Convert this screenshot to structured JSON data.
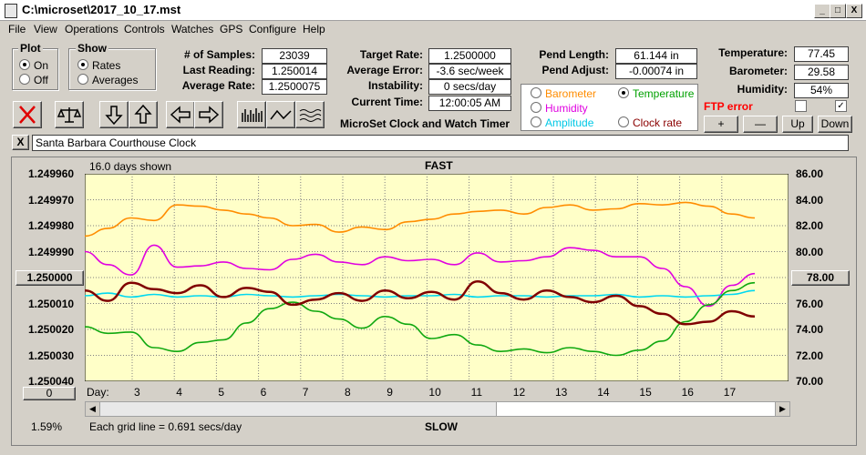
{
  "window": {
    "title": "C:\\microset\\2017_10_17.mst",
    "minimize": "_",
    "maximize": "□",
    "close": "X"
  },
  "menu": [
    "File",
    "View",
    "Operations",
    "Controls",
    "Watches",
    "GPS",
    "Configure",
    "Help"
  ],
  "plot_group": {
    "title": "Plot",
    "options": [
      "On",
      "Off"
    ],
    "selected": "On"
  },
  "show_group": {
    "title": "Show",
    "options": [
      "Rates",
      "Averages"
    ],
    "selected": "Rates"
  },
  "stats": {
    "samples_label": "# of Samples:",
    "samples": "23039",
    "last_reading_label": "Last Reading:",
    "last_reading": "1.250014",
    "average_rate_label": "Average Rate:",
    "average_rate": "1.2500075",
    "target_rate_label": "Target Rate:",
    "target_rate": "1.2500000",
    "average_error_label": "Average Error:",
    "average_error": "-3.6 sec/week",
    "instability_label": "Instability:",
    "instability": "0 secs/day",
    "current_time_label": "Current Time:",
    "current_time": "12:00:05 AM",
    "pend_length_label": "Pend Length:",
    "pend_length": "61.144 in",
    "pend_adjust_label": "Pend Adjust:",
    "pend_adjust": "-0.00074 in",
    "temperature_label": "Temperature:",
    "temperature": "77.45",
    "barometer_label": "Barometer:",
    "barometer": "29.58",
    "humidity_label": "Humidity:",
    "humidity": "54%"
  },
  "app_caption": "MicroSet Clock and Watch Timer",
  "sensor_select": {
    "options": [
      {
        "label": "Barometer",
        "color": "#ff8c00"
      },
      {
        "label": "Temperature",
        "color": "#00a000"
      },
      {
        "label": "Humidity",
        "color": "#e000e0"
      },
      {
        "label": "Amplitude",
        "color": "#00c8e6"
      },
      {
        "label": "Clock rate",
        "color": "#8b0000"
      }
    ],
    "selected": "Temperature"
  },
  "ftp": {
    "label": "FTP error",
    "color": "#ff0000"
  },
  "scale_buttons": {
    "plus": "+",
    "minus": "—",
    "up": "Up",
    "down": "Down"
  },
  "clock_name": "Santa Barbara Courthouse Clock",
  "clear_button": "X",
  "chart_header": {
    "days_shown": "16.0 days shown",
    "top": "FAST",
    "bottom": "SLOW",
    "footer": "Each grid line = 0.691 secs/day",
    "day_prefix": "Day:",
    "percent": "1.59%"
  },
  "left_button": "1.250000",
  "right_button": "78.00",
  "zero_button": "0",
  "chart_data": {
    "type": "line",
    "x_ticks": [
      "3",
      "4",
      "5",
      "6",
      "7",
      "8",
      "9",
      "10",
      "11",
      "12",
      "13",
      "14",
      "15",
      "16",
      "17"
    ],
    "y_left_ticks": [
      "1.249960",
      "1.249970",
      "1.249980",
      "1.249990",
      "1.250000",
      "1.250010",
      "1.250020",
      "1.250030",
      "1.250040"
    ],
    "y_right_ticks": [
      "86.00",
      "84.00",
      "82.00",
      "80.00",
      "78.00",
      "76.00",
      "74.00",
      "72.00",
      "70.00"
    ],
    "ylim_left": [
      1.24996,
      1.25004
    ],
    "ylim_right": [
      70,
      86
    ],
    "grid": true,
    "series": [
      {
        "name": "Barometer",
        "color": "#ff8c00",
        "values": [
          81.2,
          81.8,
          82.6,
          82.4,
          83.6,
          83.5,
          83.2,
          82.9,
          82.6,
          82.0,
          82.1,
          81.5,
          81.9,
          81.7,
          82.3,
          82.5,
          82.9,
          83.1,
          83.2,
          82.9,
          83.4,
          83.6,
          83.2,
          83.3,
          83.7,
          83.6,
          83.8,
          83.5,
          82.9,
          82.6
        ]
      },
      {
        "name": "Humidity",
        "color": "#e000e0",
        "values": [
          80.0,
          79.0,
          78.2,
          80.5,
          78.8,
          78.9,
          79.2,
          78.7,
          78.6,
          79.4,
          79.8,
          79.2,
          79.0,
          79.6,
          79.3,
          79.4,
          79.0,
          79.9,
          79.2,
          79.3,
          79.6,
          80.3,
          80.1,
          79.6,
          79.6,
          78.7,
          77.3,
          75.8,
          77.4,
          78.3
        ]
      },
      {
        "name": "Amplitude",
        "color": "#00d8f0",
        "values": [
          76.6,
          76.8,
          76.5,
          76.7,
          76.5,
          76.6,
          76.5,
          76.7,
          76.6,
          76.5,
          76.6,
          76.7,
          76.6,
          76.5,
          76.6,
          76.6,
          76.7,
          76.5,
          76.6,
          76.6,
          76.5,
          76.6,
          76.6,
          76.7,
          76.5,
          76.6,
          76.5,
          76.6,
          76.7,
          77.0
        ]
      },
      {
        "name": "Temperature",
        "color": "#10a810",
        "values": [
          74.2,
          73.7,
          73.8,
          72.6,
          72.3,
          73.0,
          73.2,
          74.5,
          75.6,
          76.1,
          75.4,
          74.8,
          74.1,
          75.0,
          74.4,
          73.3,
          73.6,
          72.8,
          72.3,
          72.5,
          72.2,
          72.6,
          72.3,
          72.0,
          72.4,
          73.1,
          74.6,
          75.9,
          77.0,
          77.6
        ]
      },
      {
        "name": "Clock rate",
        "color": "#800000",
        "values": [
          77.0,
          76.2,
          77.6,
          77.1,
          76.8,
          77.4,
          76.5,
          77.2,
          76.9,
          75.9,
          76.3,
          76.8,
          76.2,
          77.0,
          76.4,
          76.9,
          76.3,
          77.7,
          76.8,
          76.3,
          77.0,
          76.5,
          76.1,
          76.6,
          75.8,
          75.2,
          74.4,
          74.6,
          75.4,
          75.0
        ]
      }
    ]
  }
}
